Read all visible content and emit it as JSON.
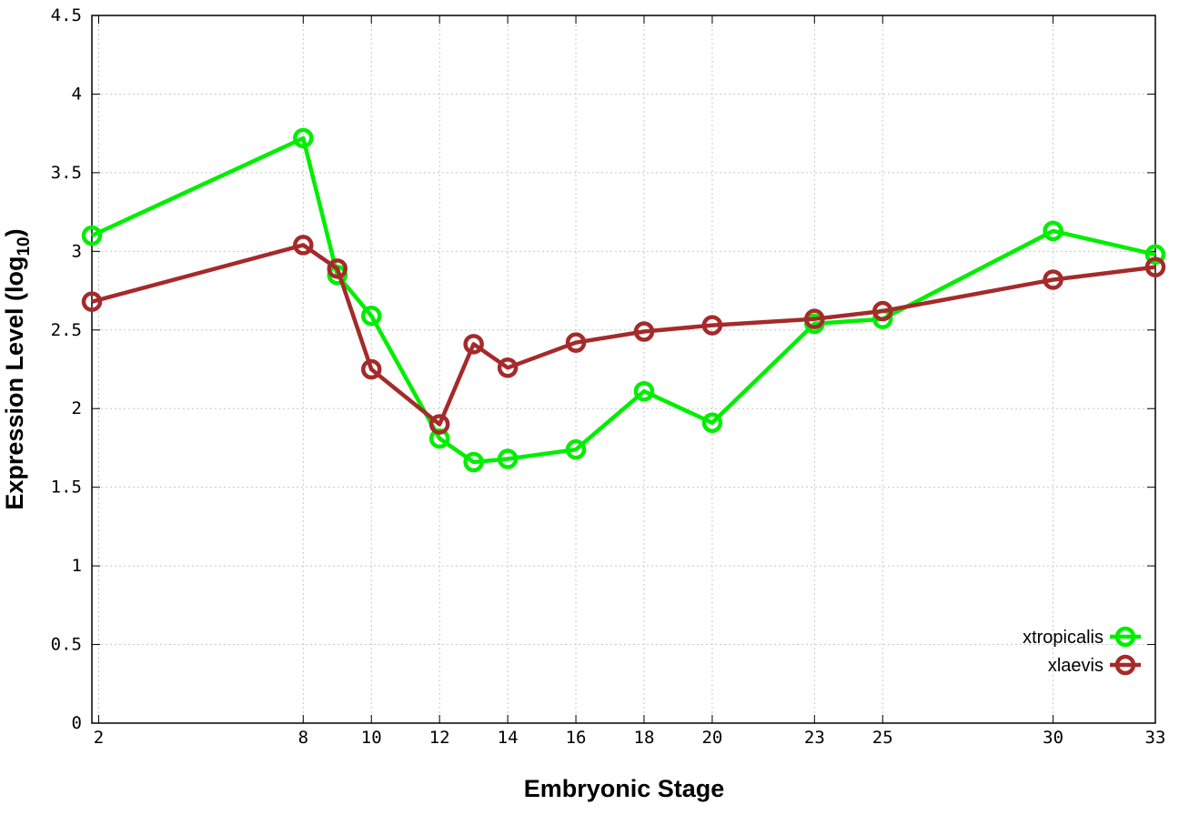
{
  "chart_data": {
    "type": "line",
    "xlabel": "Embryonic Stage",
    "ylabel_main": "Expression Level (log",
    "ylabel_sub": "10",
    "ylabel_close": ")",
    "xlim": [
      1.8,
      33
    ],
    "ylim": [
      0,
      4.5
    ],
    "x_ticks": [
      2,
      8,
      10,
      12,
      14,
      16,
      18,
      20,
      23,
      25,
      30,
      33
    ],
    "y_ticks": [
      0,
      0.5,
      1,
      1.5,
      2,
      2.5,
      3,
      3.5,
      4,
      4.5
    ],
    "y_tick_labels": [
      "0",
      "0.5",
      "1",
      "1.5",
      "2",
      "2.5",
      "3",
      "3.5",
      "4",
      "4.5"
    ],
    "x_tick_labels": [
      "2",
      "8",
      "10",
      "12",
      "14",
      "16",
      "18",
      "20",
      "23",
      "25",
      "30",
      "33"
    ],
    "grid": true,
    "legend_position": "bottom-right",
    "series": [
      {
        "name": "xtropicalis",
        "color": "#00ee00",
        "x": [
          1.8,
          8,
          9,
          10,
          12,
          13,
          14,
          16,
          18,
          20,
          23,
          25,
          30,
          33
        ],
        "y": [
          3.1,
          3.72,
          2.85,
          2.59,
          1.81,
          1.66,
          1.68,
          1.74,
          2.11,
          1.91,
          2.54,
          2.57,
          3.13,
          2.98
        ]
      },
      {
        "name": "xlaevis",
        "color": "#a52a2a",
        "x": [
          1.8,
          8,
          9,
          10,
          12,
          13,
          14,
          16,
          18,
          20,
          23,
          25,
          30,
          33
        ],
        "y": [
          2.68,
          3.04,
          2.89,
          2.25,
          1.9,
          2.41,
          2.26,
          2.42,
          2.49,
          2.53,
          2.57,
          2.62,
          2.82,
          2.9
        ]
      }
    ]
  }
}
